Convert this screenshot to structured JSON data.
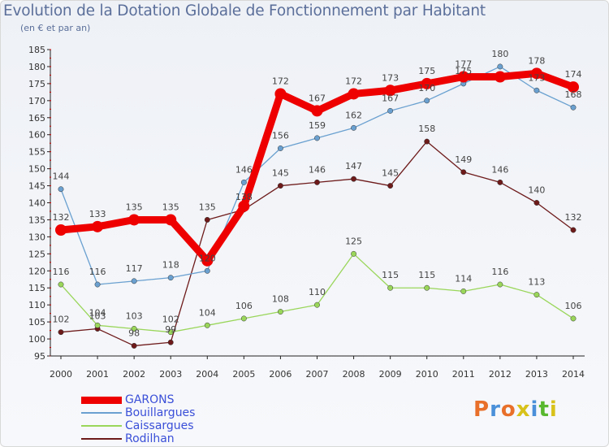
{
  "title": "Evolution de la Dotation Globale de Fonctionnement par Habitant",
  "subtitle": "(en € et par an)",
  "logo": {
    "text": "Proxiti",
    "colors": [
      "#e8702a",
      "#4a90d9",
      "#e8702a",
      "#d8c21a",
      "#4a90d9",
      "#58b82e",
      "#d8c21a"
    ]
  },
  "chart_data": {
    "type": "line",
    "x": [
      "2000",
      "2001",
      "2002",
      "2003",
      "2004",
      "2005",
      "2006",
      "2007",
      "2008",
      "2009",
      "2010",
      "2011",
      "2012",
      "2013",
      "2014"
    ],
    "ylim": [
      95,
      185
    ],
    "yticks": [
      95,
      100,
      105,
      110,
      115,
      120,
      125,
      130,
      135,
      140,
      145,
      150,
      155,
      160,
      165,
      170,
      175,
      180,
      185
    ],
    "grid": false,
    "legend_position": "bottom-left",
    "series": [
      {
        "name": "GARONS",
        "color": "#ee0000",
        "values": [
          132,
          133,
          135,
          135,
          123,
          139,
          172,
          167,
          172,
          173,
          175,
          177,
          177,
          178,
          174
        ],
        "labels": [
          "132",
          "133",
          "135",
          "135",
          "",
          "",
          "172",
          "167",
          "172",
          "173",
          "175",
          "177",
          "",
          "178",
          "174"
        ]
      },
      {
        "name": "Bouillargues",
        "color": "#6aa0d0",
        "values": [
          144,
          116,
          117,
          118,
          120,
          146,
          156,
          159,
          162,
          167,
          170,
          175,
          180,
          173,
          168
        ],
        "labels": [
          "144",
          "116",
          "117",
          "118",
          "120",
          "146",
          "156",
          "159",
          "162",
          "167",
          "170",
          "175",
          "180",
          "173",
          "168"
        ]
      },
      {
        "name": "Caissargues",
        "color": "#9ad65a",
        "values": [
          116,
          104,
          103,
          102,
          104,
          106,
          108,
          110,
          125,
          115,
          115,
          114,
          116,
          113,
          106
        ],
        "labels": [
          "116",
          "104",
          "103",
          "102",
          "104",
          "106",
          "108",
          "110",
          "125",
          "115",
          "115",
          "114",
          "116",
          "113",
          "106"
        ]
      },
      {
        "name": "Rodilhan",
        "color": "#6e1a1a",
        "values": [
          102,
          103,
          98,
          99,
          135,
          138,
          145,
          146,
          147,
          145,
          158,
          149,
          146,
          140,
          132
        ],
        "labels": [
          "102",
          "103",
          "98",
          "99",
          "135",
          "138",
          "145",
          "146",
          "147",
          "145",
          "158",
          "149",
          "146",
          "140",
          "132"
        ]
      }
    ]
  }
}
